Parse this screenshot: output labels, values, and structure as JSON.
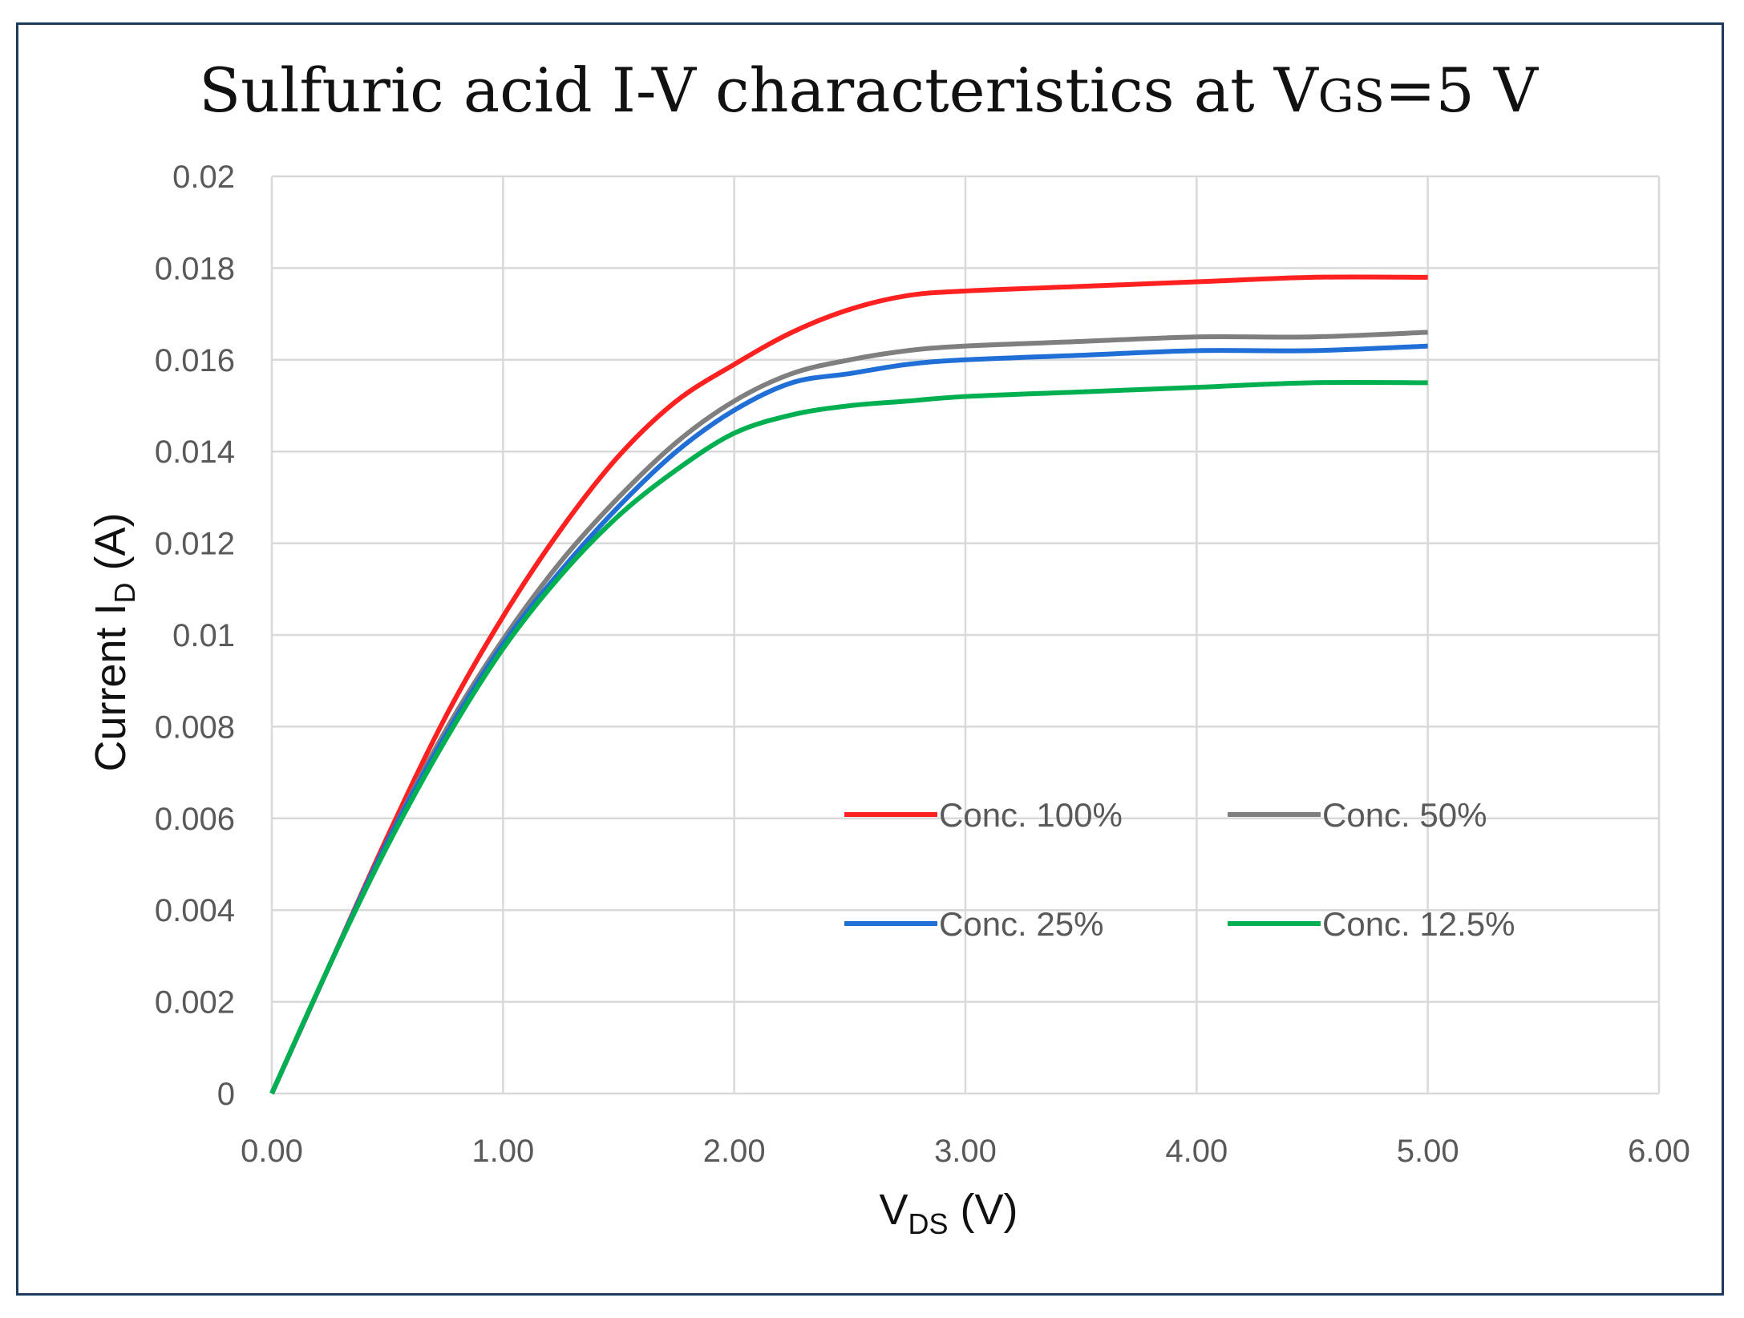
{
  "chart_data": {
    "type": "line",
    "title": {
      "main": "Sulfuric acid I-V characteristics at V",
      "sub": "GS",
      "tail": "=5 V"
    },
    "xlabel": {
      "main": "V",
      "sub": "DS",
      "tail": " (V)"
    },
    "ylabel": {
      "main": "Current  I",
      "sub": "D",
      "tail": " (A)"
    },
    "xlim": [
      0,
      6
    ],
    "ylim": [
      0,
      0.02
    ],
    "grid": true,
    "legend_position": "center-right",
    "x_ticks": [
      "0.00",
      "1.00",
      "2.00",
      "3.00",
      "4.00",
      "5.00",
      "6.00"
    ],
    "y_ticks": [
      "0",
      "0.002",
      "0.004",
      "0.006",
      "0.008",
      "0.01",
      "0.012",
      "0.014",
      "0.016",
      "0.018",
      "0.02"
    ],
    "x": [
      0,
      0.25,
      0.5,
      0.75,
      1.0,
      1.25,
      1.5,
      1.75,
      2.0,
      2.25,
      2.5,
      2.75,
      3.0,
      3.5,
      4.0,
      4.5,
      5.0
    ],
    "series": [
      {
        "name": "Conc. 100%",
        "color": "#ff2020",
        "values": [
          0,
          0.0028,
          0.0056,
          0.0082,
          0.0104,
          0.0123,
          0.0139,
          0.0151,
          0.0159,
          0.0166,
          0.0171,
          0.0174,
          0.0175,
          0.0176,
          0.0177,
          0.0178,
          0.0178
        ]
      },
      {
        "name": "Conc. 50%",
        "color": "#7f7f7f",
        "values": [
          0,
          0.0028,
          0.0055,
          0.0079,
          0.0099,
          0.0116,
          0.013,
          0.0142,
          0.0151,
          0.0157,
          0.016,
          0.0162,
          0.0163,
          0.0164,
          0.0165,
          0.0165,
          0.0166
        ]
      },
      {
        "name": "Conc. 25%",
        "color": "#1f6fd6",
        "values": [
          0,
          0.0028,
          0.0055,
          0.0078,
          0.0098,
          0.0114,
          0.0128,
          0.014,
          0.0149,
          0.0155,
          0.0157,
          0.0159,
          0.016,
          0.0161,
          0.0162,
          0.0162,
          0.0163
        ]
      },
      {
        "name": "Conc. 12.5%",
        "color": "#00b050",
        "values": [
          0,
          0.0028,
          0.0054,
          0.0077,
          0.0097,
          0.0113,
          0.0126,
          0.0136,
          0.0144,
          0.0148,
          0.015,
          0.0151,
          0.0152,
          0.0153,
          0.0154,
          0.0155,
          0.0155
        ]
      }
    ]
  }
}
